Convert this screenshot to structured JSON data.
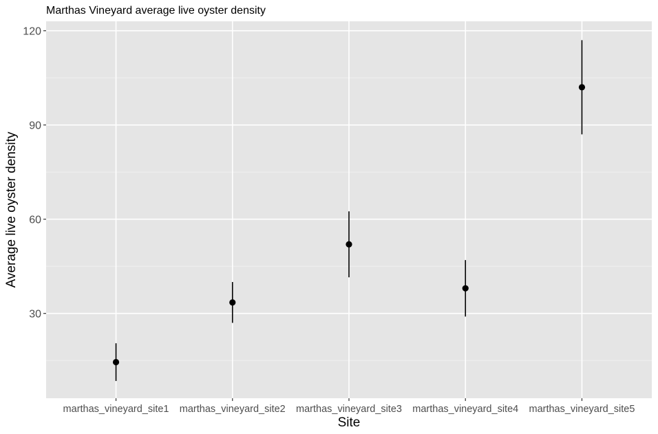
{
  "chart_data": {
    "type": "scatter",
    "title": "Marthas Vineyard average live oyster density",
    "xlabel": "Site",
    "ylabel": "Average live oyster density",
    "categories": [
      "marthas_vineyard_site1",
      "marthas_vineyard_site2",
      "marthas_vineyard_site3",
      "marthas_vineyard_site4",
      "marthas_vineyard_site5"
    ],
    "series": [
      {
        "values": [
          14.5,
          33.5,
          52,
          38,
          102
        ],
        "error_low": [
          8.5,
          27,
          41.5,
          29,
          87
        ],
        "error_high": [
          20.5,
          40,
          62.5,
          47,
          117
        ]
      }
    ],
    "yticks": [
      30,
      60,
      90,
      120
    ],
    "ylim": [
      3,
      123
    ],
    "grid": true,
    "legend": "none",
    "colors": {
      "panel": "#e5e5e5",
      "grid": "#ffffff",
      "point": "#000000",
      "tick_text": "#4d4d4d"
    }
  }
}
